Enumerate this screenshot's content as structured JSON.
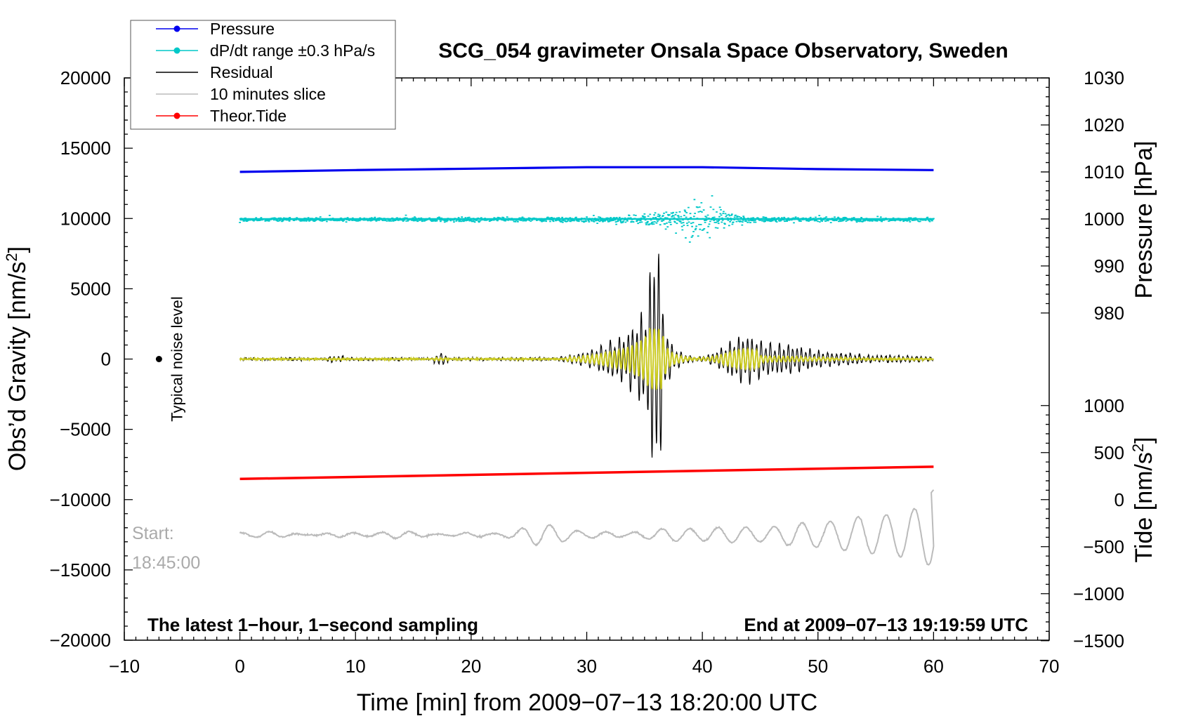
{
  "chart_data": {
    "type": "line",
    "title": "SCG_054 gravimeter Onsala Space Observatory, Sweden",
    "xlabel": "Time [min] from 2009−07−13 18:20:00 UTC",
    "ylabel_left": "Obs’d Gravity [nm/s²]",
    "ylabel_left_main": "Obs’d Gravity [nm/s",
    "ylabel_left_sup": "2",
    "ylabel_left_close": "]",
    "ylabel_right_pressure": "Pressure [hPa]",
    "ylabel_right_tide": "Tide [nm/s²]",
    "ylabel_right_tide_main": "Tide [nm/s",
    "ylabel_right_tide_sup": "2",
    "ylabel_right_tide_close": "]",
    "xlim": [
      -10,
      70
    ],
    "ylim_left": [
      -20000,
      20000
    ],
    "ylim_pressure": [
      980,
      1030
    ],
    "ylim_tide": [
      -1500,
      1000
    ],
    "x_ticks": [
      "−10",
      "0",
      "10",
      "20",
      "30",
      "40",
      "50",
      "60",
      "70"
    ],
    "x_tick_values": [
      -10,
      0,
      10,
      20,
      30,
      40,
      50,
      60,
      70
    ],
    "y_left_ticks": [
      "20000",
      "15000",
      "10000",
      "5000",
      "0",
      "−5000",
      "−10000",
      "−15000",
      "−20000"
    ],
    "y_left_tick_values": [
      20000,
      15000,
      10000,
      5000,
      0,
      -5000,
      -10000,
      -15000,
      -20000
    ],
    "y_pressure_ticks": [
      "1030",
      "1020",
      "1010",
      "1000",
      "990",
      "980"
    ],
    "y_pressure_tick_values": [
      1030,
      1020,
      1010,
      1000,
      990,
      980
    ],
    "y_tide_ticks": [
      "1000",
      "500",
      "0",
      "−500",
      "−1000",
      "−1500"
    ],
    "y_tide_tick_values": [
      1000,
      500,
      0,
      -500,
      -1000,
      -1500
    ],
    "legend": {
      "position": "top-left",
      "entries": [
        {
          "label": "Pressure",
          "color": "#0000ee",
          "marker": true
        },
        {
          "label": "dP/dt range ±0.3 hPa/s",
          "color": "#00c8c8",
          "marker": true
        },
        {
          "label": "Residual",
          "color": "#000000",
          "marker": false
        },
        {
          "label": "10 minutes slice",
          "color": "#bbbbbb",
          "marker": false
        },
        {
          "label": "Theor.Tide",
          "color": "#ff0000",
          "marker": true
        }
      ]
    },
    "annotations": {
      "noise_label": "Typical noise level",
      "start_label": "Start:",
      "start_time": "18:45:00",
      "bottom_left": "The latest 1−hour, 1−second sampling",
      "bottom_right": "End at 2009−07−13 19:19:59 UTC"
    },
    "series": [
      {
        "name": "Pressure",
        "axis": "pressure",
        "color": "#0000ee",
        "x": [
          0,
          10,
          20,
          30,
          40,
          50,
          60
        ],
        "values": [
          1010.0,
          1010.4,
          1010.7,
          1011.0,
          1011.0,
          1010.6,
          1010.4
        ]
      },
      {
        "name": "dP/dt range ±0.3 hPa/s",
        "axis": "pressure",
        "color": "#00c8c8",
        "center": 1000,
        "x_range": [
          0,
          60
        ],
        "burst_center_min": 39.5,
        "typical_spread_hpa": 0.3,
        "burst_spread_hpa": 3
      },
      {
        "name": "Residual",
        "axis": "left",
        "color": "#000000",
        "x_range": [
          0,
          60
        ],
        "peak_min": 36,
        "peak_max": 8000,
        "peak_min_value": -9000,
        "second_group_min": 43,
        "second_group_max": 2300
      },
      {
        "name": "Filtered residual",
        "axis": "left",
        "color": "#cccc22",
        "x_range": [
          0,
          60
        ],
        "peak_min": 36,
        "peak_max": 1800
      },
      {
        "name": "10 minutes slice",
        "axis": "left",
        "color": "#bbbbbb",
        "x_range": [
          0,
          60
        ],
        "offset": -12500,
        "end_peak": 3000,
        "end_trough": -2800
      },
      {
        "name": "Theor.Tide",
        "axis": "tide",
        "color": "#ff0000",
        "x": [
          0,
          60
        ],
        "values": [
          220,
          350
        ]
      }
    ],
    "noise_marker": {
      "x": -7,
      "y": 0
    }
  }
}
